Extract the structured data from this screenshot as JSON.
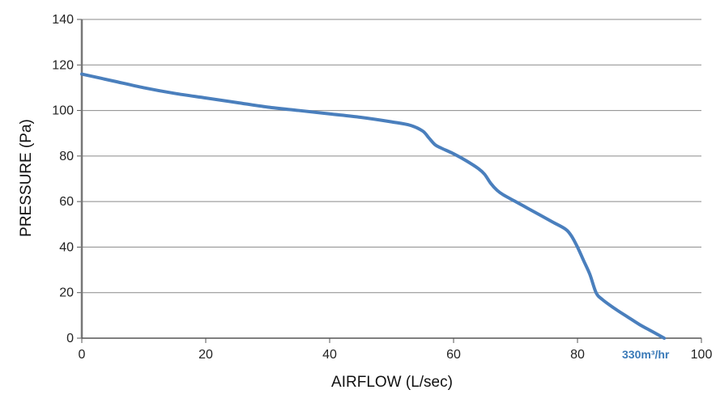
{
  "chart_data": {
    "type": "line",
    "xlabel": "AIRFLOW (L/sec)",
    "ylabel": "PRESSURE (Pa)",
    "xlim": [
      0,
      100
    ],
    "ylim": [
      0,
      140
    ],
    "xticks": [
      "0",
      "20",
      "40",
      "60",
      "80",
      "100"
    ],
    "yticks": [
      "0",
      "20",
      "40",
      "60",
      "80",
      "100",
      "120",
      "140"
    ],
    "grid": "horizontal",
    "annotation": {
      "text": "330m³/hr",
      "color": "#3a7ab8"
    },
    "series": [
      {
        "color": "#4a7fbd",
        "x": [
          0,
          5,
          10,
          15,
          20,
          25,
          30,
          35,
          40,
          45,
          50,
          53,
          55,
          56,
          57,
          58,
          60,
          62,
          64,
          65,
          66,
          67,
          68,
          70,
          72,
          74,
          76,
          78,
          79,
          80,
          81,
          82,
          83,
          84,
          86,
          88,
          90,
          92,
          94
        ],
        "y": [
          116,
          113,
          110,
          107.5,
          105.5,
          103.5,
          101.5,
          100,
          98.5,
          97,
          95,
          93.5,
          91,
          88,
          85,
          83.5,
          81,
          78,
          74.5,
          72,
          68,
          65,
          63,
          60,
          57,
          54,
          51,
          48,
          45,
          40,
          34,
          28,
          20,
          17,
          13,
          9.5,
          6,
          3,
          0
        ]
      }
    ]
  }
}
